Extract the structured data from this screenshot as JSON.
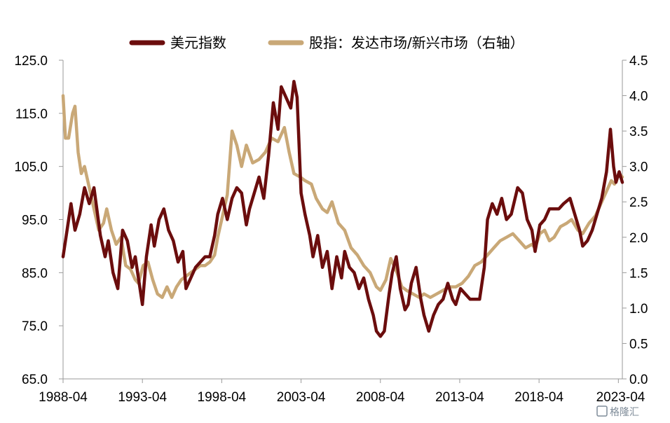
{
  "chart_data": {
    "type": "line",
    "legend": {
      "position": "top-center"
    },
    "grid": false,
    "x_ticks": [
      "1988-04",
      "1993-04",
      "1998-04",
      "2003-04",
      "2008-04",
      "2013-04",
      "2018-04",
      "2023-04"
    ],
    "x_range": [
      1988.25,
      2023.5
    ],
    "y_left": {
      "range": [
        65.0,
        125.0
      ],
      "ticks": [
        "65.0",
        "75.0",
        "85.0",
        "95.0",
        "105.0",
        "115.0",
        "125.0"
      ]
    },
    "y_right": {
      "range": [
        0.0,
        4.5
      ],
      "ticks": [
        "0.0",
        "0.5",
        "1.0",
        "1.5",
        "2.0",
        "2.5",
        "3.0",
        "3.5",
        "4.0",
        "4.5"
      ]
    },
    "series": [
      {
        "name": "美元指数",
        "axis": "left",
        "color": "#6b0d0d",
        "points": [
          [
            1988.25,
            88
          ],
          [
            1988.5,
            93
          ],
          [
            1988.75,
            98
          ],
          [
            1989.0,
            93
          ],
          [
            1989.3,
            96
          ],
          [
            1989.6,
            101
          ],
          [
            1989.9,
            98
          ],
          [
            1990.2,
            101
          ],
          [
            1990.6,
            92
          ],
          [
            1990.9,
            88
          ],
          [
            1991.1,
            91
          ],
          [
            1991.4,
            85
          ],
          [
            1991.7,
            82
          ],
          [
            1992.0,
            93
          ],
          [
            1992.3,
            91
          ],
          [
            1992.6,
            86
          ],
          [
            1992.8,
            88
          ],
          [
            1993.0,
            84
          ],
          [
            1993.25,
            79
          ],
          [
            1993.5,
            88
          ],
          [
            1993.8,
            94
          ],
          [
            1994.0,
            90
          ],
          [
            1994.3,
            95
          ],
          [
            1994.6,
            97
          ],
          [
            1994.9,
            93
          ],
          [
            1995.2,
            91
          ],
          [
            1995.5,
            87
          ],
          [
            1995.8,
            89
          ],
          [
            1996.0,
            82
          ],
          [
            1996.3,
            84
          ],
          [
            1996.6,
            86
          ],
          [
            1996.9,
            87
          ],
          [
            1997.2,
            88
          ],
          [
            1997.5,
            88
          ],
          [
            1997.8,
            92
          ],
          [
            1998.0,
            96
          ],
          [
            1998.3,
            99
          ],
          [
            1998.6,
            95
          ],
          [
            1998.9,
            99
          ],
          [
            1999.2,
            101
          ],
          [
            1999.5,
            100
          ],
          [
            1999.8,
            94
          ],
          [
            2000.0,
            97
          ],
          [
            2000.3,
            100
          ],
          [
            2000.6,
            103
          ],
          [
            2000.9,
            99
          ],
          [
            2001.2,
            107
          ],
          [
            2001.5,
            117
          ],
          [
            2001.8,
            112
          ],
          [
            2002.0,
            120
          ],
          [
            2002.3,
            118
          ],
          [
            2002.6,
            116
          ],
          [
            2002.8,
            121
          ],
          [
            2003.0,
            118
          ],
          [
            2003.25,
            100
          ],
          [
            2003.5,
            96
          ],
          [
            2003.8,
            92
          ],
          [
            2004.0,
            88
          ],
          [
            2004.3,
            92
          ],
          [
            2004.6,
            86
          ],
          [
            2004.9,
            89
          ],
          [
            2005.2,
            82
          ],
          [
            2005.5,
            88
          ],
          [
            2005.8,
            84
          ],
          [
            2006.0,
            89
          ],
          [
            2006.3,
            86
          ],
          [
            2006.6,
            85
          ],
          [
            2006.9,
            82
          ],
          [
            2007.2,
            84
          ],
          [
            2007.5,
            80
          ],
          [
            2007.8,
            77
          ],
          [
            2008.0,
            74
          ],
          [
            2008.25,
            73
          ],
          [
            2008.5,
            74
          ],
          [
            2008.8,
            81
          ],
          [
            2009.0,
            85
          ],
          [
            2009.25,
            88
          ],
          [
            2009.5,
            82
          ],
          [
            2009.8,
            78
          ],
          [
            2010.0,
            79
          ],
          [
            2010.2,
            83
          ],
          [
            2010.5,
            86
          ],
          [
            2010.8,
            80
          ],
          [
            2011.0,
            77
          ],
          [
            2011.3,
            74
          ],
          [
            2011.6,
            77
          ],
          [
            2011.9,
            79
          ],
          [
            2012.2,
            80
          ],
          [
            2012.5,
            83
          ],
          [
            2012.8,
            80
          ],
          [
            2013.0,
            79
          ],
          [
            2013.3,
            82
          ],
          [
            2013.6,
            81
          ],
          [
            2013.9,
            80
          ],
          [
            2014.2,
            80
          ],
          [
            2014.5,
            80
          ],
          [
            2014.8,
            86
          ],
          [
            2015.0,
            95
          ],
          [
            2015.3,
            98
          ],
          [
            2015.6,
            96
          ],
          [
            2015.9,
            99
          ],
          [
            2016.2,
            95
          ],
          [
            2016.5,
            96
          ],
          [
            2016.9,
            101
          ],
          [
            2017.2,
            100
          ],
          [
            2017.5,
            95
          ],
          [
            2017.8,
            93
          ],
          [
            2018.0,
            89
          ],
          [
            2018.3,
            94
          ],
          [
            2018.6,
            95
          ],
          [
            2018.9,
            97
          ],
          [
            2019.2,
            97
          ],
          [
            2019.5,
            97
          ],
          [
            2019.8,
            98
          ],
          [
            2020.2,
            99
          ],
          [
            2020.5,
            96
          ],
          [
            2020.8,
            93
          ],
          [
            2021.0,
            90
          ],
          [
            2021.3,
            91
          ],
          [
            2021.6,
            93
          ],
          [
            2021.9,
            96
          ],
          [
            2022.2,
            99
          ],
          [
            2022.5,
            104
          ],
          [
            2022.75,
            112
          ],
          [
            2022.95,
            105
          ],
          [
            2023.1,
            102
          ],
          [
            2023.3,
            104
          ],
          [
            2023.5,
            102
          ]
        ]
      },
      {
        "name": "股指：发达市场/新兴市场（右轴）",
        "axis": "right",
        "color": "#c9a877",
        "points": [
          [
            1988.25,
            4.0
          ],
          [
            1988.4,
            3.4
          ],
          [
            1988.6,
            3.4
          ],
          [
            1988.85,
            3.75
          ],
          [
            1989.0,
            3.85
          ],
          [
            1989.2,
            3.2
          ],
          [
            1989.4,
            2.9
          ],
          [
            1989.6,
            3.0
          ],
          [
            1989.9,
            2.7
          ],
          [
            1990.2,
            2.4
          ],
          [
            1990.5,
            2.1
          ],
          [
            1990.8,
            2.2
          ],
          [
            1991.0,
            2.4
          ],
          [
            1991.3,
            2.1
          ],
          [
            1991.6,
            1.9
          ],
          [
            1991.9,
            2.0
          ],
          [
            1992.2,
            1.6
          ],
          [
            1992.5,
            1.55
          ],
          [
            1992.8,
            1.4
          ],
          [
            1993.0,
            1.35
          ],
          [
            1993.3,
            1.6
          ],
          [
            1993.6,
            1.65
          ],
          [
            1993.9,
            1.4
          ],
          [
            1994.2,
            1.2
          ],
          [
            1994.5,
            1.15
          ],
          [
            1994.8,
            1.3
          ],
          [
            1995.1,
            1.15
          ],
          [
            1995.4,
            1.3
          ],
          [
            1995.7,
            1.4
          ],
          [
            1996.0,
            1.45
          ],
          [
            1996.3,
            1.5
          ],
          [
            1996.6,
            1.55
          ],
          [
            1996.9,
            1.6
          ],
          [
            1997.2,
            1.6
          ],
          [
            1997.5,
            1.65
          ],
          [
            1997.8,
            1.75
          ],
          [
            1998.0,
            2.0
          ],
          [
            1998.3,
            2.3
          ],
          [
            1998.6,
            2.6
          ],
          [
            1998.9,
            3.5
          ],
          [
            1999.2,
            3.3
          ],
          [
            1999.5,
            3.0
          ],
          [
            1999.8,
            3.3
          ],
          [
            2000.2,
            3.05
          ],
          [
            2000.6,
            3.1
          ],
          [
            2001.0,
            3.2
          ],
          [
            2001.4,
            3.4
          ],
          [
            2001.8,
            3.35
          ],
          [
            2002.2,
            3.55
          ],
          [
            2002.5,
            3.2
          ],
          [
            2002.8,
            2.9
          ],
          [
            2003.2,
            2.85
          ],
          [
            2003.5,
            2.8
          ],
          [
            2003.9,
            2.75
          ],
          [
            2004.2,
            2.55
          ],
          [
            2004.6,
            2.4
          ],
          [
            2004.9,
            2.35
          ],
          [
            2005.2,
            2.5
          ],
          [
            2005.6,
            2.2
          ],
          [
            2006.0,
            2.1
          ],
          [
            2006.4,
            1.85
          ],
          [
            2006.8,
            1.75
          ],
          [
            2007.2,
            1.6
          ],
          [
            2007.6,
            1.5
          ],
          [
            2008.0,
            1.3
          ],
          [
            2008.25,
            1.25
          ],
          [
            2008.6,
            1.4
          ],
          [
            2008.9,
            1.7
          ],
          [
            2009.3,
            1.5
          ],
          [
            2009.6,
            1.3
          ],
          [
            2009.9,
            1.25
          ],
          [
            2010.3,
            1.2
          ],
          [
            2010.7,
            1.15
          ],
          [
            2011.0,
            1.2
          ],
          [
            2011.4,
            1.15
          ],
          [
            2011.8,
            1.2
          ],
          [
            2012.2,
            1.25
          ],
          [
            2012.6,
            1.3
          ],
          [
            2013.0,
            1.3
          ],
          [
            2013.4,
            1.35
          ],
          [
            2013.8,
            1.45
          ],
          [
            2014.2,
            1.6
          ],
          [
            2014.6,
            1.65
          ],
          [
            2015.0,
            1.75
          ],
          [
            2015.4,
            1.85
          ],
          [
            2015.8,
            1.95
          ],
          [
            2016.2,
            2.0
          ],
          [
            2016.6,
            2.05
          ],
          [
            2017.0,
            1.95
          ],
          [
            2017.4,
            1.85
          ],
          [
            2017.8,
            1.9
          ],
          [
            2018.0,
            1.85
          ],
          [
            2018.3,
            2.05
          ],
          [
            2018.6,
            2.1
          ],
          [
            2018.9,
            1.95
          ],
          [
            2019.2,
            2.0
          ],
          [
            2019.6,
            2.15
          ],
          [
            2020.0,
            2.2
          ],
          [
            2020.3,
            2.25
          ],
          [
            2020.7,
            2.1
          ],
          [
            2021.0,
            2.05
          ],
          [
            2021.4,
            2.2
          ],
          [
            2021.8,
            2.3
          ],
          [
            2022.2,
            2.5
          ],
          [
            2022.5,
            2.65
          ],
          [
            2022.8,
            2.8
          ],
          [
            2023.0,
            2.75
          ],
          [
            2023.3,
            2.9
          ],
          [
            2023.5,
            2.85
          ]
        ]
      }
    ]
  },
  "watermark": "格隆汇"
}
